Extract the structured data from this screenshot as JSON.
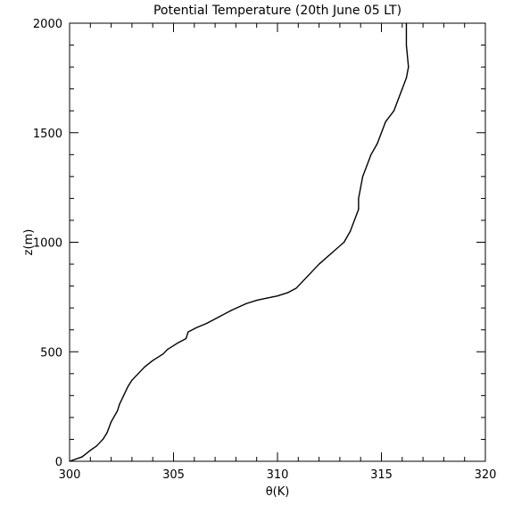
{
  "chart_data": {
    "type": "line",
    "title": "Potential Temperature (20th June 05 LT)",
    "xlabel": "θ(K)",
    "ylabel": "z(m)",
    "xlim": [
      300,
      320
    ],
    "ylim": [
      0,
      2000
    ],
    "x_ticks": [
      300,
      305,
      310,
      315,
      320
    ],
    "y_ticks": [
      0,
      500,
      1000,
      1500,
      2000
    ],
    "x_tick_labels": [
      "300",
      "305",
      "310",
      "315",
      "320"
    ],
    "y_tick_labels": [
      "0",
      "500",
      "1000",
      "1500",
      "2000"
    ],
    "x_minor_step": 1,
    "y_minor_step": 100,
    "grid": false,
    "series": [
      {
        "color": "#000000",
        "x": [
          300.0,
          300.6,
          301.0,
          301.3,
          301.6,
          301.8,
          302.0,
          302.3,
          302.4,
          302.6,
          302.8,
          303.0,
          303.3,
          303.6,
          304.0,
          304.5,
          304.7,
          305.2,
          305.6,
          305.7,
          306.1,
          306.6,
          307.2,
          307.8,
          308.5,
          309.0,
          309.5,
          310.0,
          310.5,
          310.9,
          311.2,
          311.5,
          312.0,
          312.6,
          313.2,
          313.5,
          313.7,
          313.9,
          313.9,
          314.0,
          314.1,
          314.3,
          314.5,
          314.8,
          315.0,
          315.2,
          315.6,
          315.8,
          316.0,
          316.2,
          316.3,
          316.2,
          316.2
        ],
        "y": [
          0,
          20,
          50,
          70,
          100,
          130,
          180,
          230,
          260,
          300,
          340,
          370,
          400,
          430,
          460,
          490,
          510,
          540,
          560,
          590,
          610,
          630,
          660,
          690,
          720,
          735,
          745,
          755,
          770,
          790,
          820,
          850,
          900,
          950,
          1000,
          1050,
          1100,
          1150,
          1200,
          1250,
          1300,
          1350,
          1400,
          1450,
          1500,
          1550,
          1600,
          1650,
          1700,
          1750,
          1800,
          1900,
          2000
        ]
      }
    ]
  }
}
